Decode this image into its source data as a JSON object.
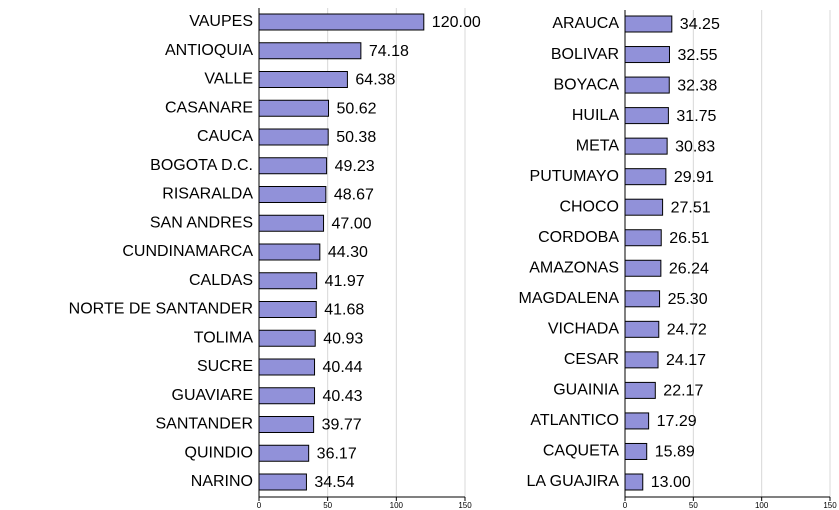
{
  "chart_data": [
    {
      "type": "bar",
      "orientation": "horizontal",
      "color": "#9191d9",
      "grid": true,
      "categories": [
        "VAUPES",
        "ANTIOQUIA",
        "VALLE",
        "CASANARE",
        "CAUCA",
        "BOGOTA D.C.",
        "RISARALDA",
        "SAN ANDRES",
        "CUNDINAMARCA",
        "CALDAS",
        "NORTE DE SANTANDER",
        "TOLIMA",
        "SUCRE",
        "GUAVIARE",
        "SANTANDER",
        "QUINDIO",
        "NARINO"
      ],
      "values": [
        120,
        74.18,
        64.38,
        50.62,
        50.38,
        49.23,
        48.67,
        47,
        44.3,
        41.97,
        41.68,
        40.93,
        40.44,
        40.43,
        39.77,
        36.17,
        34.54
      ],
      "value_labels": [
        "120.00",
        "74.18",
        "64.38",
        "50.62",
        "50.38",
        "49.23",
        "48.67",
        "47.00",
        "44.30",
        "41.97",
        "41.68",
        "40.93",
        "40.44",
        "40.43",
        "39.77",
        "36.17",
        "34.54"
      ],
      "xlim": [
        0,
        150
      ],
      "xticks": [
        0,
        50,
        100,
        150
      ]
    },
    {
      "type": "bar",
      "orientation": "horizontal",
      "color": "#9191d9",
      "grid": true,
      "categories": [
        "ARAUCA",
        "BOLIVAR",
        "BOYACA",
        "HUILA",
        "META",
        "PUTUMAYO",
        "CHOCO",
        "CORDOBA",
        "AMAZONAS",
        "MAGDALENA",
        "VICHADA",
        "CESAR",
        "GUAINIA",
        "ATLANTICO",
        "CAQUETA",
        "LA GUAJIRA"
      ],
      "values": [
        34.25,
        32.55,
        32.38,
        31.75,
        30.83,
        29.91,
        27.51,
        26.51,
        26.24,
        25.3,
        24.72,
        24.17,
        22.17,
        17.29,
        15.89,
        13
      ],
      "value_labels": [
        "34.25",
        "32.55",
        "32.38",
        "31.75",
        "30.83",
        "29.91",
        "27.51",
        "26.51",
        "26.24",
        "25.30",
        "24.72",
        "24.17",
        "22.17",
        "17.29",
        "15.89",
        "13.00"
      ],
      "xlim": [
        0,
        150
      ],
      "xticks": [
        0,
        50,
        100,
        150
      ]
    }
  ]
}
